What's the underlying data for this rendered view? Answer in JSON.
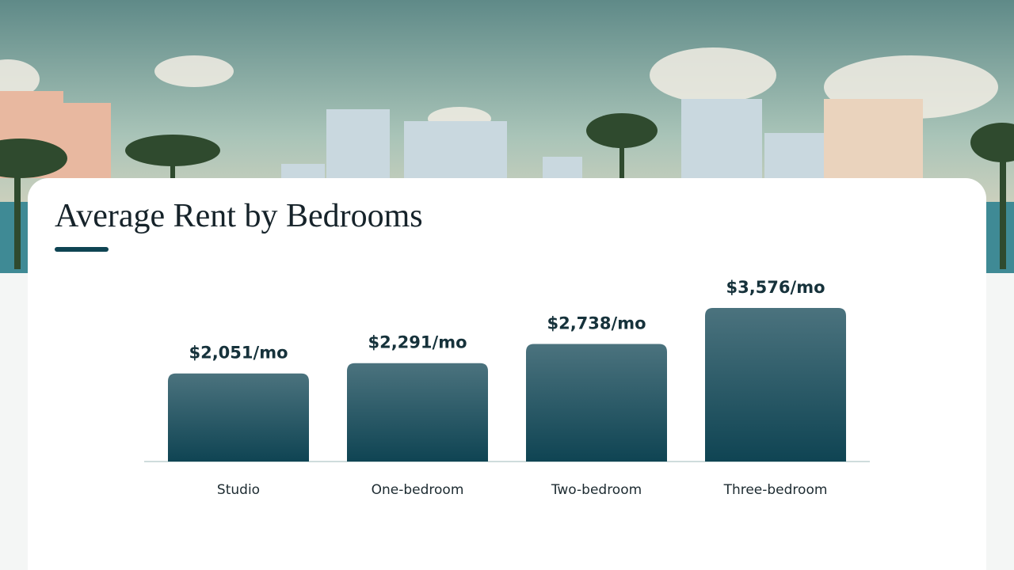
{
  "chart_data": {
    "type": "bar",
    "title": "Average Rent by Bedrooms",
    "categories": [
      "Studio",
      "One-bedroom",
      "Two-bedroom",
      "Three-bedroom"
    ],
    "values": [
      2051,
      2291,
      2738,
      3576
    ],
    "value_labels": [
      "$2,051/mo",
      "$2,291/mo",
      "$2,738/mo",
      "$3,576/mo"
    ],
    "color": "#0f4453"
  }
}
